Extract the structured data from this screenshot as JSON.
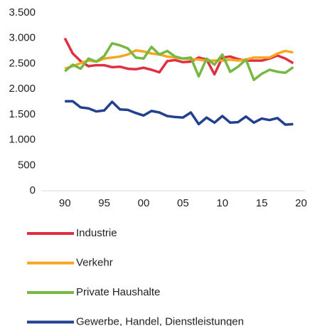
{
  "chart_data": {
    "type": "line",
    "x": [
      1990,
      1991,
      1992,
      1993,
      1994,
      1995,
      1996,
      1997,
      1998,
      1999,
      2000,
      2001,
      2002,
      2003,
      2004,
      2005,
      2006,
      2007,
      2008,
      2009,
      2010,
      2011,
      2012,
      2013,
      2014,
      2015,
      2016,
      2017,
      2018,
      2019
    ],
    "series": [
      {
        "name": "Industrie",
        "color": "#e03040",
        "values": [
          3000,
          2700,
          2550,
          2450,
          2470,
          2470,
          2430,
          2440,
          2400,
          2390,
          2420,
          2380,
          2330,
          2550,
          2570,
          2530,
          2540,
          2620,
          2580,
          2290,
          2620,
          2640,
          2590,
          2560,
          2560,
          2560,
          2600,
          2660,
          2600,
          2510
        ]
      },
      {
        "name": "Verkehr",
        "color": "#f5a623",
        "values": [
          2400,
          2450,
          2510,
          2560,
          2540,
          2600,
          2620,
          2640,
          2680,
          2760,
          2740,
          2700,
          2680,
          2640,
          2620,
          2600,
          2590,
          2580,
          2560,
          2560,
          2560,
          2580,
          2560,
          2580,
          2620,
          2620,
          2620,
          2700,
          2750,
          2720
        ]
      },
      {
        "name": "Private Haushalte",
        "color": "#77b843",
        "values": [
          2350,
          2480,
          2400,
          2600,
          2540,
          2650,
          2900,
          2860,
          2800,
          2620,
          2600,
          2830,
          2680,
          2750,
          2640,
          2600,
          2620,
          2250,
          2600,
          2480,
          2680,
          2340,
          2440,
          2580,
          2180,
          2300,
          2380,
          2340,
          2320,
          2430
        ]
      },
      {
        "name": "Gewerbe, Handel, Dienstleistungen",
        "color": "#233f8f",
        "values": [
          1760,
          1760,
          1640,
          1620,
          1560,
          1580,
          1750,
          1600,
          1590,
          1530,
          1480,
          1570,
          1540,
          1470,
          1450,
          1440,
          1540,
          1310,
          1440,
          1340,
          1470,
          1340,
          1350,
          1460,
          1340,
          1420,
          1390,
          1430,
          1300,
          1310
        ]
      }
    ],
    "xlim": [
      1987,
      2020.5
    ],
    "xticks": [
      {
        "value": 1990,
        "label": "90"
      },
      {
        "value": 1995,
        "label": "95"
      },
      {
        "value": 2000,
        "label": "00"
      },
      {
        "value": 2005,
        "label": "05"
      },
      {
        "value": 2010,
        "label": "10"
      },
      {
        "value": 2015,
        "label": "15"
      },
      {
        "value": 2020,
        "label": "20"
      }
    ],
    "ylim": [
      0,
      3500
    ],
    "yticks": [
      0,
      500,
      {
        "value": 1000,
        "label": "1.000"
      },
      {
        "value": 1500,
        "label": "1.500"
      },
      {
        "value": 2000,
        "label": "2.000"
      },
      {
        "value": 2500,
        "label": "2.500"
      },
      {
        "value": 3000,
        "label": "3.000"
      },
      {
        "value": 3500,
        "label": "3.500"
      }
    ],
    "legend": "bottom"
  }
}
